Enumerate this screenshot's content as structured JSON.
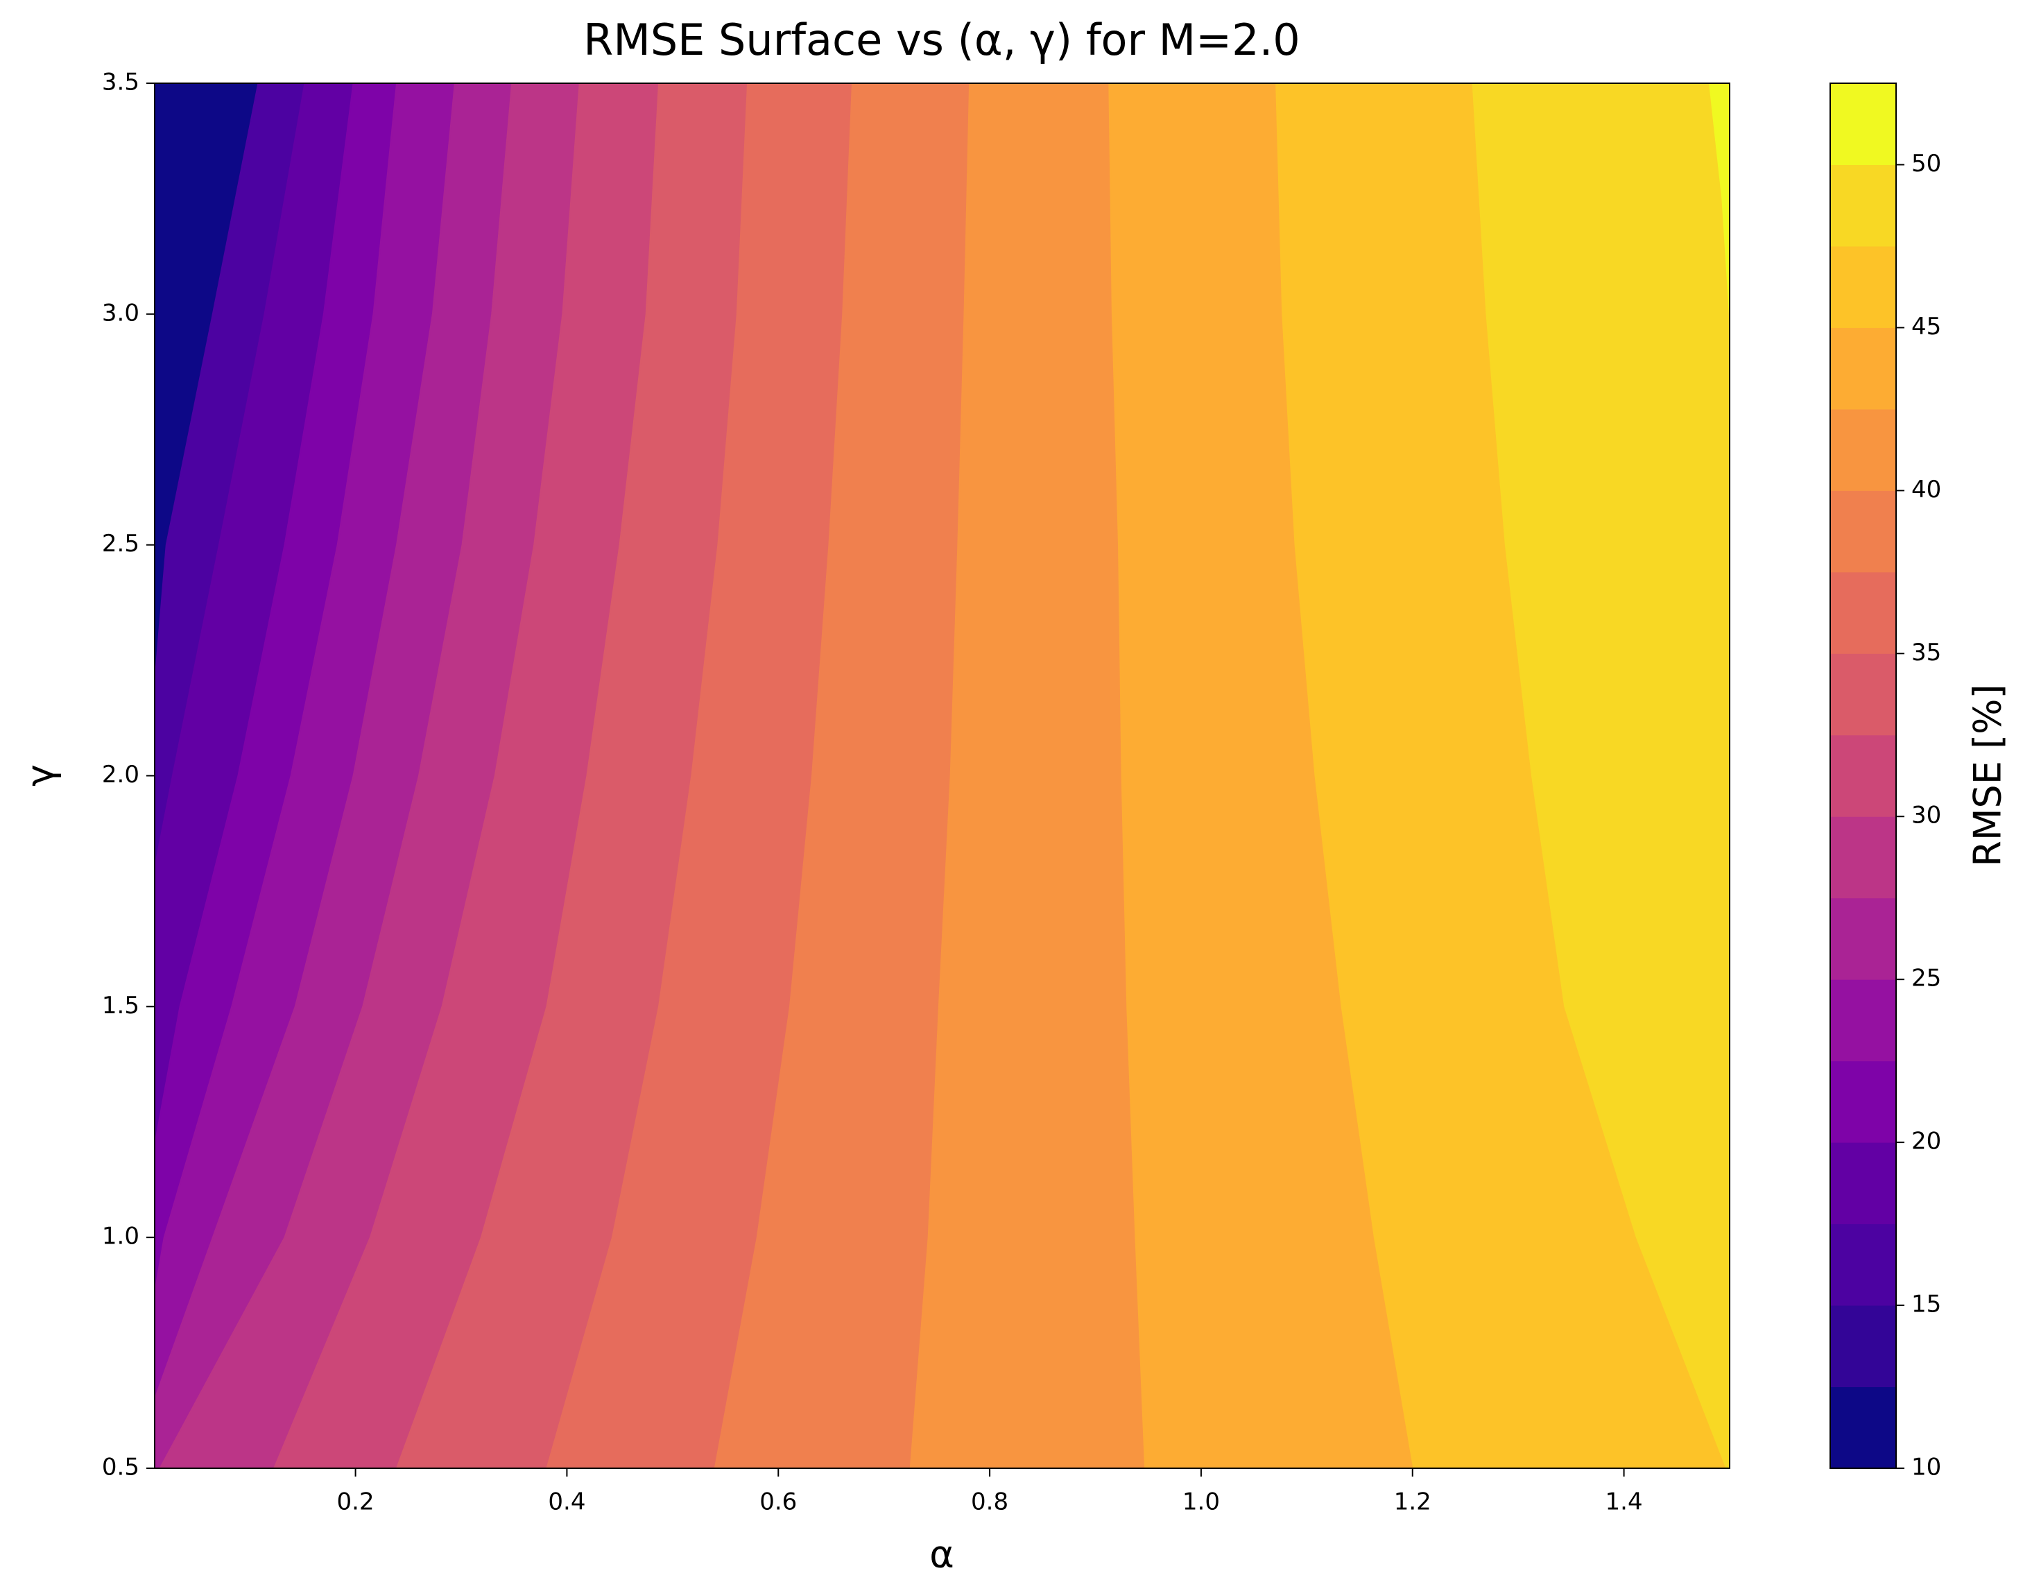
{
  "chart_data": {
    "type": "contourf",
    "title": "RMSE Surface vs (α, γ) for M=2.0",
    "xlabel": "α",
    "ylabel": "γ",
    "colorbar_label": "RMSE [%]",
    "xlim": [
      0.01,
      1.5
    ],
    "ylim": [
      0.5,
      3.5
    ],
    "xticks": [
      0.2,
      0.4,
      0.6,
      0.8,
      {
        "value": 1,
        "label": "1.0"
      },
      1.2,
      1.4
    ],
    "yticks": [
      0.5,
      {
        "value": 1,
        "label": "1.0"
      },
      1.5,
      {
        "value": 2,
        "label": "2.0"
      },
      2.5,
      {
        "value": 3,
        "label": "3.0"
      },
      3.5
    ],
    "levels": [
      10,
      12.5,
      15,
      17.5,
      20,
      22.5,
      25,
      27.5,
      30,
      32.5,
      35,
      37.5,
      40,
      42.5,
      45,
      47.5,
      50,
      52.5
    ],
    "colorbar_ticks": [
      10,
      15,
      20,
      25,
      30,
      35,
      40,
      45,
      50
    ],
    "colors": [
      "#0d0887",
      "#330597",
      "#4c02a1",
      "#6200a4",
      "#7e03a8",
      "#9511a1",
      "#aa2395",
      "#bc3587",
      "#cc4778",
      "#da5b69",
      "#e66c5c",
      "#f0804e",
      "#f89540",
      "#fdac33",
      "#fdc328",
      "#f8d824",
      "#f0f921"
    ],
    "contours": [
      {
        "level": 15,
        "x": [
          0.108,
          0.065,
          0.021,
          0.01
        ],
        "y": [
          3.5,
          3.0,
          2.5,
          2.2
        ]
      },
      {
        "level": 17.5,
        "x": [
          0.152,
          0.114,
          0.071,
          0.027,
          0.01
        ],
        "y": [
          3.5,
          3.0,
          2.5,
          2.0,
          1.8
        ]
      },
      {
        "level": 20,
        "x": [
          0.198,
          0.17,
          0.133,
          0.089,
          0.034,
          0.01
        ],
        "y": [
          3.5,
          3.0,
          2.5,
          2.0,
          1.5,
          1.2
        ]
      },
      {
        "level": 22.5,
        "x": [
          0.239,
          0.217,
          0.183,
          0.139,
          0.083,
          0.019,
          0.01
        ],
        "y": [
          3.5,
          3.0,
          2.5,
          2.0,
          1.5,
          1.0,
          0.88
        ]
      },
      {
        "level": 25,
        "x": [
          0.294,
          0.273,
          0.239,
          0.198,
          0.143,
          0.065,
          0.01
        ],
        "y": [
          3.5,
          3.0,
          2.5,
          2.0,
          1.5,
          1.0,
          0.65
        ]
      },
      {
        "level": 27.5,
        "x": [
          0.348,
          0.329,
          0.301,
          0.26,
          0.207,
          0.133,
          0.015
        ],
        "y": [
          3.5,
          3.0,
          2.5,
          2.0,
          1.5,
          1.0,
          0.5
        ]
      },
      {
        "level": 30,
        "x": [
          0.412,
          0.396,
          0.369,
          0.332,
          0.282,
          0.214,
          0.123
        ],
        "y": [
          3.5,
          3.0,
          2.5,
          2.0,
          1.5,
          1.0,
          0.5
        ]
      },
      {
        "level": 32.5,
        "x": [
          0.487,
          0.475,
          0.45,
          0.419,
          0.381,
          0.319,
          0.239
        ],
        "y": [
          3.5,
          3.0,
          2.5,
          2.0,
          1.5,
          1.0,
          0.5
        ]
      },
      {
        "level": 35,
        "x": [
          0.571,
          0.561,
          0.543,
          0.518,
          0.487,
          0.443,
          0.381
        ],
        "y": [
          3.5,
          3.0,
          2.5,
          2.0,
          1.5,
          1.0,
          0.5
        ]
      },
      {
        "level": 37.5,
        "x": [
          0.67,
          0.661,
          0.648,
          0.632,
          0.611,
          0.58,
          0.54
        ],
        "y": [
          3.5,
          3.0,
          2.5,
          2.0,
          1.5,
          1.0,
          0.5
        ]
      },
      {
        "level": 40,
        "x": [
          0.781,
          0.776,
          0.77,
          0.763,
          0.752,
          0.742,
          0.725
        ],
        "y": [
          3.5,
          3.0,
          2.5,
          2.0,
          1.5,
          1.0,
          0.5
        ]
      },
      {
        "level": 42.5,
        "x": [
          0.913,
          0.916,
          0.922,
          0.925,
          0.93,
          0.938,
          0.947
        ],
        "y": [
          3.5,
          3.0,
          2.5,
          2.0,
          1.5,
          1.0,
          0.5
        ]
      },
      {
        "level": 45,
        "x": [
          1.071,
          1.077,
          1.089,
          1.108,
          1.133,
          1.164,
          1.201
        ],
        "y": [
          3.5,
          3.0,
          2.5,
          2.0,
          1.5,
          1.0,
          0.5
        ]
      },
      {
        "level": 47.5,
        "x": [
          1.257,
          1.27,
          1.288,
          1.313,
          1.344,
          1.412,
          1.497
        ],
        "y": [
          3.5,
          3.0,
          2.5,
          2.0,
          1.5,
          1.0,
          0.5
        ]
      },
      {
        "level": 50,
        "x": [
          1.481,
          1.493,
          1.5
        ],
        "y": [
          3.5,
          3.25,
          3.0
        ]
      }
    ]
  }
}
